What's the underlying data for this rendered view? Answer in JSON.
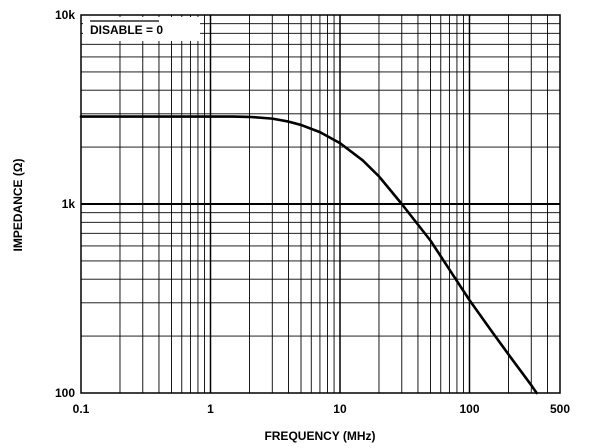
{
  "chart_data": {
    "type": "line",
    "title": "",
    "xlabel": "FREQUENCY (MHz)",
    "ylabel": "IMPEDANCE (Ω)",
    "x_scale": "log",
    "y_scale": "log",
    "xlim": [
      0.1,
      500
    ],
    "ylim": [
      100,
      10000
    ],
    "grid": true,
    "x_ticks": [
      {
        "value": 0.1,
        "label": "0.1"
      },
      {
        "value": 1,
        "label": "1"
      },
      {
        "value": 10,
        "label": "10"
      },
      {
        "value": 100,
        "label": "100"
      },
      {
        "value": 500,
        "label": "500"
      }
    ],
    "y_ticks": [
      {
        "value": 100,
        "label": "100"
      },
      {
        "value": 1000,
        "label": "1k"
      },
      {
        "value": 10000,
        "label": "10k"
      }
    ],
    "annotation": {
      "overlined": "DISABLE",
      "suffix": " = 0"
    },
    "series": [
      {
        "line_color": "#000000",
        "points": [
          {
            "x": 0.1,
            "y": 2900
          },
          {
            "x": 0.5,
            "y": 2900
          },
          {
            "x": 1,
            "y": 2900
          },
          {
            "x": 1.5,
            "y": 2900
          },
          {
            "x": 2,
            "y": 2890
          },
          {
            "x": 3,
            "y": 2830
          },
          {
            "x": 4,
            "y": 2730
          },
          {
            "x": 5,
            "y": 2620
          },
          {
            "x": 7,
            "y": 2400
          },
          {
            "x": 10,
            "y": 2100
          },
          {
            "x": 15,
            "y": 1700
          },
          {
            "x": 20,
            "y": 1400
          },
          {
            "x": 30,
            "y": 1000
          },
          {
            "x": 50,
            "y": 640
          },
          {
            "x": 70,
            "y": 450
          },
          {
            "x": 100,
            "y": 310
          },
          {
            "x": 150,
            "y": 210
          },
          {
            "x": 200,
            "y": 160
          },
          {
            "x": 300,
            "y": 110
          },
          {
            "x": 330,
            "y": 100
          }
        ]
      }
    ]
  }
}
